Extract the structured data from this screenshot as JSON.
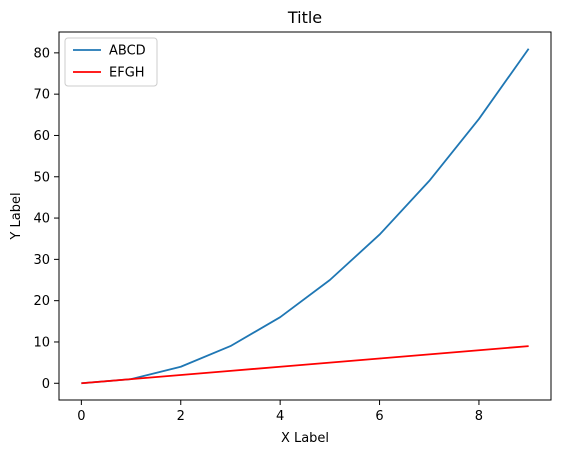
{
  "chart_data": {
    "type": "line",
    "title": "Title",
    "xlabel": "X Label",
    "ylabel": "Y Label",
    "x": [
      0,
      1,
      2,
      3,
      4,
      5,
      6,
      7,
      8,
      9
    ],
    "xlim": [
      -0.45,
      9.45
    ],
    "ylim": [
      -4.05,
      85.05
    ],
    "xticks": [
      0,
      2,
      4,
      6,
      8
    ],
    "yticks": [
      0,
      10,
      20,
      30,
      40,
      50,
      60,
      70,
      80
    ],
    "grid": false,
    "legend_position": "top-left",
    "series": [
      {
        "name": "ABCD",
        "color": "#1f77b4",
        "values": [
          0,
          1,
          4,
          9,
          16,
          25,
          36,
          49,
          64,
          81
        ]
      },
      {
        "name": "EFGH",
        "color": "#ff0000",
        "values": [
          0,
          1,
          2,
          3,
          4,
          5,
          6,
          7,
          8,
          9
        ]
      }
    ]
  }
}
